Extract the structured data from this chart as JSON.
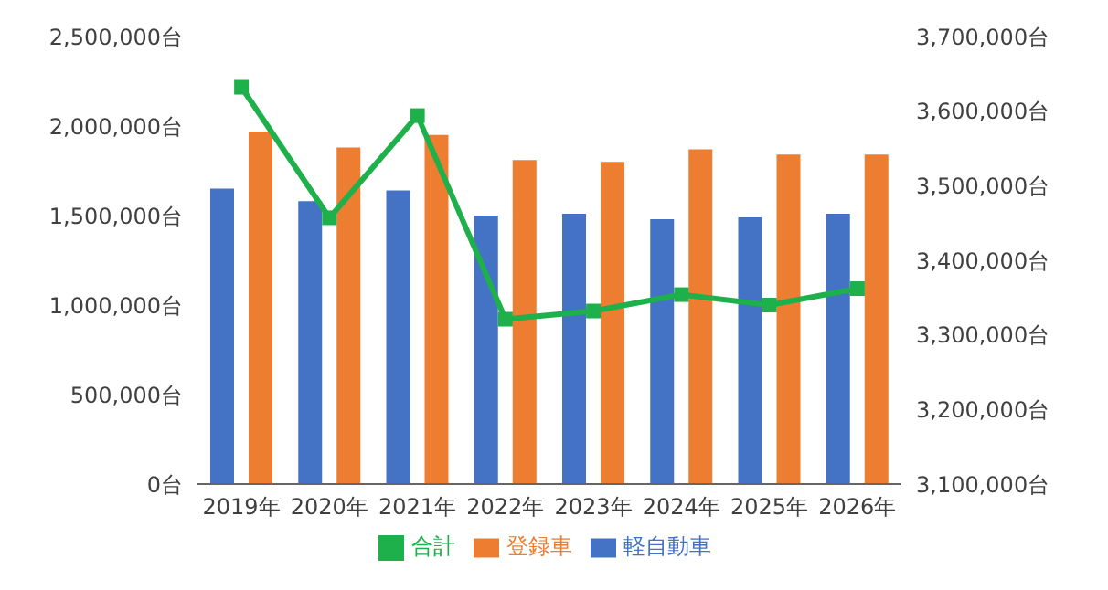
{
  "chart_data": {
    "type": "bar",
    "categories": [
      "2019年",
      "2020年",
      "2021年",
      "2022年",
      "2023年",
      "2024年",
      "2025年",
      "2026年"
    ],
    "series": [
      {
        "name": "軽自動車",
        "color": "#4472c4",
        "values": [
          1650000,
          1580000,
          1640000,
          1500000,
          1510000,
          1480000,
          1490000,
          1510000
        ]
      },
      {
        "name": "登録車",
        "color": "#ed7d31",
        "values": [
          1970000,
          1880000,
          1950000,
          1810000,
          1800000,
          1870000,
          1840000,
          1840000
        ]
      },
      {
        "name": "合計",
        "type": "line",
        "axis": "y2",
        "color": "#1db04b",
        "marker": "square",
        "values": [
          3632000,
          3457000,
          3594000,
          3321000,
          3332000,
          3354000,
          3340000,
          3362000
        ]
      }
    ],
    "ylim": [
      0,
      2500000
    ],
    "yticks": [
      {
        "value": 0,
        "label": "0台"
      },
      {
        "value": 500000,
        "label": "500,000台"
      },
      {
        "value": 1000000,
        "label": "1,000,000台"
      },
      {
        "value": 1500000,
        "label": "1,500,000台"
      },
      {
        "value": 2000000,
        "label": "2,000,000台"
      },
      {
        "value": 2500000,
        "label": "2,500,000台"
      }
    ],
    "y2lim": [
      3100000,
      3700000
    ],
    "y2ticks": [
      {
        "value": 3100000,
        "label": "3,100,000台"
      },
      {
        "value": 3200000,
        "label": "3,200,000台"
      },
      {
        "value": 3300000,
        "label": "3,300,000台"
      },
      {
        "value": 3400000,
        "label": "3,400,000台"
      },
      {
        "value": 3500000,
        "label": "3,500,000台"
      },
      {
        "value": 3600000,
        "label": "3,600,000台"
      },
      {
        "value": 3700000,
        "label": "3,700,000台"
      }
    ],
    "legend": "bottom",
    "grid": false
  }
}
